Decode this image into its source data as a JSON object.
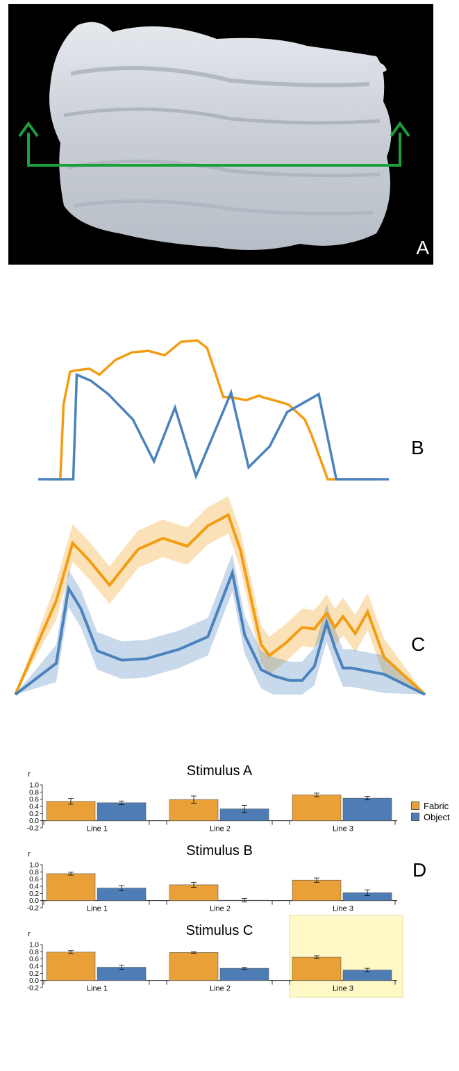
{
  "panels": {
    "a": {
      "label": "A"
    },
    "b": {
      "label": "B"
    },
    "c": {
      "label": "C"
    },
    "d": {
      "label": "D"
    }
  },
  "colors": {
    "fabric": "#E9A037",
    "object": "#4E7DB5",
    "fabric_line": "#F39C12",
    "object_line": "#4A82BD",
    "arrow": "#1E9F3E",
    "highlight": "#FFF9C8"
  },
  "legend": [
    {
      "name": "Fabric",
      "color": "#E9A037"
    },
    {
      "name": "Object",
      "color": "#4E7DB5"
    }
  ],
  "chart_data": [
    {
      "type": "line",
      "series": [
        {
          "name": "",
          "x": [
            0,
            0.03,
            0.04,
            0.06,
            0.08,
            0.12,
            0.15,
            0.2,
            0.25,
            0.3,
            0.35,
            0.4,
            0.45,
            0.48,
            0.5,
            0.53,
            0.55,
            0.6,
            0.64,
            0.65,
            0.7,
            0.73,
            0.75,
            0.78,
            0.8,
            0.85,
            0.9,
            0.93,
            0.95,
            0.97,
            1.0
          ],
          "y": [
            0,
            0,
            0.5,
            0.72,
            0.73,
            0.74,
            0.7,
            0.8,
            0.85,
            0.86,
            0.83,
            0.92,
            0.93,
            0.88,
            0.75,
            0.55,
            0.55,
            0.53,
            0.56,
            0.55,
            0.52,
            0.5,
            0.46,
            0.4,
            0.3,
            0,
            0,
            0,
            0,
            0,
            0
          ]
        },
        {
          "name": "",
          "x": [
            0,
            0.1,
            0.11,
            0.15,
            0.2,
            0.27,
            0.33,
            0.39,
            0.45,
            0.5,
            0.55,
            0.6,
            0.66,
            0.71,
            0.8,
            0.85,
            1.0
          ],
          "y": [
            0,
            0,
            0.7,
            0.66,
            0.57,
            0.4,
            0.12,
            0.48,
            0.02,
            0.3,
            0.58,
            0.08,
            0.22,
            0.45,
            0.57,
            0,
            0
          ]
        }
      ]
    },
    {
      "type": "line",
      "series": [
        {
          "name": "",
          "x": [
            0,
            0.1,
            0.14,
            0.18,
            0.23,
            0.3,
            0.36,
            0.42,
            0.47,
            0.52,
            0.55,
            0.6,
            0.62,
            0.66,
            0.7,
            0.73,
            0.76,
            0.78,
            0.8,
            0.83,
            0.86,
            0.9,
            1.0
          ],
          "y": [
            0,
            0.6,
            0.97,
            0.86,
            0.7,
            0.93,
            1.0,
            0.95,
            1.08,
            1.15,
            0.92,
            0.32,
            0.25,
            0.33,
            0.43,
            0.42,
            0.52,
            0.43,
            0.5,
            0.39,
            0.53,
            0.24,
            0
          ]
        },
        {
          "name": "",
          "x": [
            0,
            0.1,
            0.13,
            0.16,
            0.2,
            0.26,
            0.32,
            0.4,
            0.47,
            0.53,
            0.56,
            0.6,
            0.63,
            0.67,
            0.7,
            0.73,
            0.76,
            0.78,
            0.8,
            0.82,
            0.86,
            0.9,
            1.0
          ],
          "y": [
            0,
            0.2,
            0.68,
            0.55,
            0.28,
            0.22,
            0.23,
            0.29,
            0.37,
            0.78,
            0.38,
            0.16,
            0.12,
            0.09,
            0.09,
            0.18,
            0.46,
            0.3,
            0.17,
            0.17,
            0.15,
            0.13,
            0
          ]
        }
      ]
    },
    {
      "type": "bar",
      "title": "Stimulus A",
      "ylabel": "r",
      "categories": [
        "Line 1",
        "Line 2",
        "Line 3"
      ],
      "ylim": [
        -0.2,
        1.0
      ],
      "ticks": [
        "1.0",
        "0.8",
        "0.6",
        "0.4",
        "0.2",
        "0.0",
        "-0.2"
      ],
      "series": [
        {
          "name": "Fabric",
          "values": [
            0.54,
            0.59,
            0.72
          ],
          "errors": [
            0.08,
            0.1,
            0.05
          ]
        },
        {
          "name": "Object",
          "values": [
            0.5,
            0.33,
            0.63
          ],
          "errors": [
            0.05,
            0.1,
            0.05
          ]
        }
      ],
      "highlight": null
    },
    {
      "type": "bar",
      "title": "Stimulus B",
      "ylabel": "r",
      "categories": [
        "Line 1",
        "Line 2",
        "Line 3"
      ],
      "ylim": [
        -0.2,
        1.0
      ],
      "ticks": [
        "1.0",
        "0.8",
        "0.6",
        "0.4",
        "0.2",
        "0.0",
        "-0.2"
      ],
      "series": [
        {
          "name": "Fabric",
          "values": [
            0.75,
            0.44,
            0.57
          ],
          "errors": [
            0.04,
            0.07,
            0.06
          ]
        },
        {
          "name": "Object",
          "values": [
            0.35,
            0.01,
            0.22
          ],
          "errors": [
            0.07,
            0.05,
            0.08
          ]
        }
      ],
      "highlight": null
    },
    {
      "type": "bar",
      "title": "Stimulus C",
      "ylabel": "r",
      "categories": [
        "Line 1",
        "Line 2",
        "Line 3"
      ],
      "ylim": [
        -0.2,
        1.0
      ],
      "ticks": [
        "1.0",
        "0.8",
        "0.6",
        "0.4",
        "0.2",
        "0.0",
        "-0.2"
      ],
      "series": [
        {
          "name": "Fabric",
          "values": [
            0.79,
            0.78,
            0.65
          ],
          "errors": [
            0.04,
            0.02,
            0.04
          ]
        },
        {
          "name": "Object",
          "values": [
            0.37,
            0.34,
            0.29
          ],
          "errors": [
            0.06,
            0.03,
            0.05
          ]
        }
      ],
      "highlight": "Line 3"
    }
  ]
}
